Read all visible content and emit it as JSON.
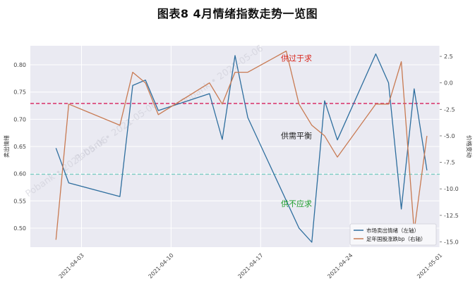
{
  "chart_data": {
    "type": "line",
    "title": "图表8   4月情绪指数走势一览图",
    "ylabel": "卖出情绪",
    "y2label": "价格变动",
    "ylim": [
      0.465,
      0.835
    ],
    "y2lim": [
      -15.5,
      3.5
    ],
    "yticks": [
      0.5,
      0.55,
      0.6,
      0.65,
      0.7,
      0.75,
      0.8
    ],
    "ytick_labels": [
      "0.50",
      "0.55",
      "0.60",
      "0.65",
      "0.70",
      "0.75",
      "0.80"
    ],
    "y2ticks": [
      2.5,
      0.0,
      -2.5,
      -5.0,
      -7.5,
      -10.0,
      -12.5,
      -15.0
    ],
    "y2tick_labels": [
      "2.5",
      "0.0",
      "-2.5",
      "-5.0",
      "-7.5",
      "-10.0",
      "-12.5",
      "-15.0"
    ],
    "xlim": [
      "2021-03-30",
      "2021-05-01"
    ],
    "xticks": [
      "2021-04-03",
      "2021-04-10",
      "2021-04-17",
      "2021-04-24",
      "2021-05-01"
    ],
    "grid": true,
    "legend_position": "bottom-right",
    "series": [
      {
        "name": "市场卖出情绪（左轴）",
        "axis": "left",
        "color": "#2e6e9e",
        "x": [
          "2021-04-01",
          "2021-04-02",
          "2021-04-06",
          "2021-04-07",
          "2021-04-08",
          "2021-04-09",
          "2021-04-13",
          "2021-04-14",
          "2021-04-15",
          "2021-04-16",
          "2021-04-20",
          "2021-04-21",
          "2021-04-22",
          "2021-04-23",
          "2021-04-26",
          "2021-04-27",
          "2021-04-28",
          "2021-04-29",
          "2021-04-30"
        ],
        "values": [
          0.647,
          0.583,
          0.558,
          0.762,
          0.772,
          0.716,
          0.747,
          0.663,
          0.817,
          0.703,
          0.5,
          0.474,
          0.734,
          0.662,
          0.82,
          0.767,
          0.535,
          0.756,
          0.606
        ]
      },
      {
        "name": "足年国股涨跌bp（右轴）",
        "axis": "right",
        "color": "#c87a52",
        "x": [
          "2021-04-01",
          "2021-04-02",
          "2021-04-06",
          "2021-04-07",
          "2021-04-08",
          "2021-04-09",
          "2021-04-13",
          "2021-04-14",
          "2021-04-15",
          "2021-04-16",
          "2021-04-19",
          "2021-04-20",
          "2021-04-21",
          "2021-04-22",
          "2021-04-23",
          "2021-04-26",
          "2021-04-27",
          "2021-04-28",
          "2021-04-29",
          "2021-04-30"
        ],
        "values": [
          -14.8,
          -2.0,
          -4.0,
          1.0,
          0.0,
          -3.0,
          0.0,
          -2.0,
          1.0,
          1.0,
          3.0,
          -2.0,
          -4.0,
          -5.0,
          -7.0,
          -2.0,
          -2.0,
          2.0,
          -14.0,
          -5.0
        ]
      }
    ],
    "reference_lines": [
      {
        "axis": "left",
        "value": 0.729,
        "color": "#d81e5b"
      },
      {
        "axis": "left",
        "value": 0.599,
        "color": "#78c9c0"
      }
    ],
    "annotations": [
      {
        "text": "供过于求",
        "color": "#d9261c"
      },
      {
        "text": "供需平衡",
        "color": "#222222"
      },
      {
        "text": "供不应求",
        "color": "#1e9e2c"
      }
    ],
    "watermark": "Pobank • 2021-05-06"
  }
}
